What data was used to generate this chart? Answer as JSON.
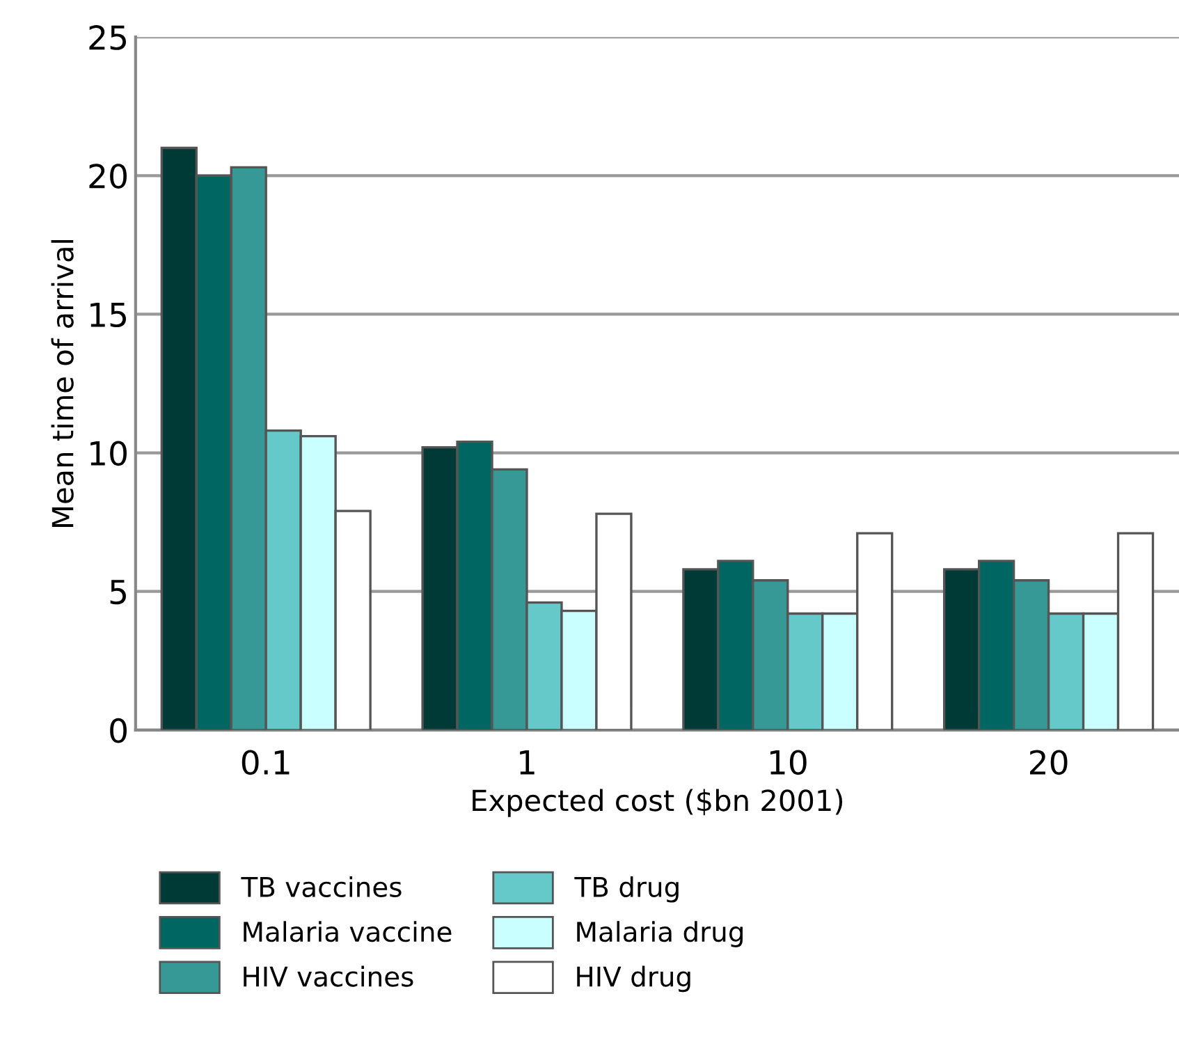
{
  "chart_data": {
    "type": "bar",
    "xlabel": "Expected cost ($bn 2001)",
    "ylabel": "Mean time of arrival",
    "categories": [
      "0.1",
      "1",
      "10",
      "20"
    ],
    "series": [
      {
        "name": "TB vaccines",
        "color": "#003a36",
        "values": [
          21.0,
          10.2,
          5.8,
          5.8
        ]
      },
      {
        "name": "Malaria vaccine",
        "color": "#006661",
        "values": [
          20.0,
          10.4,
          6.1,
          6.1
        ]
      },
      {
        "name": "HIV vaccines",
        "color": "#369996",
        "values": [
          20.3,
          9.4,
          5.4,
          5.4
        ]
      },
      {
        "name": "TB drug",
        "color": "#66c9c9",
        "values": [
          10.8,
          4.6,
          4.2,
          4.2
        ]
      },
      {
        "name": "Malaria drug",
        "color": "#c9ffff",
        "values": [
          10.6,
          4.3,
          4.2,
          4.2
        ]
      },
      {
        "name": "HIV drug",
        "color": "#ffffff",
        "values": [
          7.9,
          7.8,
          7.1,
          7.1
        ]
      }
    ],
    "ylim": [
      0,
      25
    ],
    "yticks": [
      0,
      5,
      10,
      15,
      20,
      25
    ],
    "grid": "y",
    "legend": "bottom"
  }
}
